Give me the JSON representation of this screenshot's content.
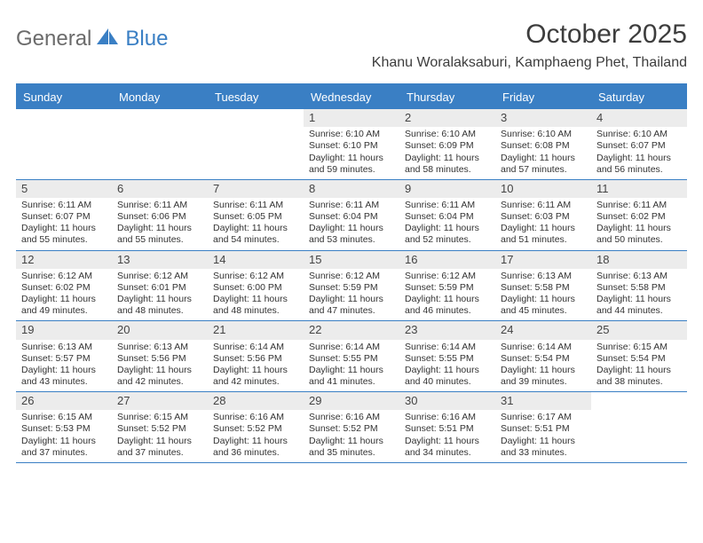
{
  "brand": {
    "part1": "General",
    "part2": "Blue"
  },
  "title": "October 2025",
  "location": "Khanu Woralaksaburi, Kamphaeng Phet, Thailand",
  "colors": {
    "accent": "#3a7fc4",
    "header_text": "#ffffff",
    "cell_bg": "#ececec",
    "text": "#333333",
    "page_bg": "#ffffff"
  },
  "day_names": [
    "Sunday",
    "Monday",
    "Tuesday",
    "Wednesday",
    "Thursday",
    "Friday",
    "Saturday"
  ],
  "weeks": [
    [
      {
        "n": "",
        "empty": true
      },
      {
        "n": "",
        "empty": true
      },
      {
        "n": "",
        "empty": true
      },
      {
        "n": "1",
        "sr": "Sunrise: 6:10 AM",
        "ss": "Sunset: 6:10 PM",
        "dl": "Daylight: 11 hours and 59 minutes."
      },
      {
        "n": "2",
        "sr": "Sunrise: 6:10 AM",
        "ss": "Sunset: 6:09 PM",
        "dl": "Daylight: 11 hours and 58 minutes."
      },
      {
        "n": "3",
        "sr": "Sunrise: 6:10 AM",
        "ss": "Sunset: 6:08 PM",
        "dl": "Daylight: 11 hours and 57 minutes."
      },
      {
        "n": "4",
        "sr": "Sunrise: 6:10 AM",
        "ss": "Sunset: 6:07 PM",
        "dl": "Daylight: 11 hours and 56 minutes."
      }
    ],
    [
      {
        "n": "5",
        "sr": "Sunrise: 6:11 AM",
        "ss": "Sunset: 6:07 PM",
        "dl": "Daylight: 11 hours and 55 minutes."
      },
      {
        "n": "6",
        "sr": "Sunrise: 6:11 AM",
        "ss": "Sunset: 6:06 PM",
        "dl": "Daylight: 11 hours and 55 minutes."
      },
      {
        "n": "7",
        "sr": "Sunrise: 6:11 AM",
        "ss": "Sunset: 6:05 PM",
        "dl": "Daylight: 11 hours and 54 minutes."
      },
      {
        "n": "8",
        "sr": "Sunrise: 6:11 AM",
        "ss": "Sunset: 6:04 PM",
        "dl": "Daylight: 11 hours and 53 minutes."
      },
      {
        "n": "9",
        "sr": "Sunrise: 6:11 AM",
        "ss": "Sunset: 6:04 PM",
        "dl": "Daylight: 11 hours and 52 minutes."
      },
      {
        "n": "10",
        "sr": "Sunrise: 6:11 AM",
        "ss": "Sunset: 6:03 PM",
        "dl": "Daylight: 11 hours and 51 minutes."
      },
      {
        "n": "11",
        "sr": "Sunrise: 6:11 AM",
        "ss": "Sunset: 6:02 PM",
        "dl": "Daylight: 11 hours and 50 minutes."
      }
    ],
    [
      {
        "n": "12",
        "sr": "Sunrise: 6:12 AM",
        "ss": "Sunset: 6:02 PM",
        "dl": "Daylight: 11 hours and 49 minutes."
      },
      {
        "n": "13",
        "sr": "Sunrise: 6:12 AM",
        "ss": "Sunset: 6:01 PM",
        "dl": "Daylight: 11 hours and 48 minutes."
      },
      {
        "n": "14",
        "sr": "Sunrise: 6:12 AM",
        "ss": "Sunset: 6:00 PM",
        "dl": "Daylight: 11 hours and 48 minutes."
      },
      {
        "n": "15",
        "sr": "Sunrise: 6:12 AM",
        "ss": "Sunset: 5:59 PM",
        "dl": "Daylight: 11 hours and 47 minutes."
      },
      {
        "n": "16",
        "sr": "Sunrise: 6:12 AM",
        "ss": "Sunset: 5:59 PM",
        "dl": "Daylight: 11 hours and 46 minutes."
      },
      {
        "n": "17",
        "sr": "Sunrise: 6:13 AM",
        "ss": "Sunset: 5:58 PM",
        "dl": "Daylight: 11 hours and 45 minutes."
      },
      {
        "n": "18",
        "sr": "Sunrise: 6:13 AM",
        "ss": "Sunset: 5:58 PM",
        "dl": "Daylight: 11 hours and 44 minutes."
      }
    ],
    [
      {
        "n": "19",
        "sr": "Sunrise: 6:13 AM",
        "ss": "Sunset: 5:57 PM",
        "dl": "Daylight: 11 hours and 43 minutes."
      },
      {
        "n": "20",
        "sr": "Sunrise: 6:13 AM",
        "ss": "Sunset: 5:56 PM",
        "dl": "Daylight: 11 hours and 42 minutes."
      },
      {
        "n": "21",
        "sr": "Sunrise: 6:14 AM",
        "ss": "Sunset: 5:56 PM",
        "dl": "Daylight: 11 hours and 42 minutes."
      },
      {
        "n": "22",
        "sr": "Sunrise: 6:14 AM",
        "ss": "Sunset: 5:55 PM",
        "dl": "Daylight: 11 hours and 41 minutes."
      },
      {
        "n": "23",
        "sr": "Sunrise: 6:14 AM",
        "ss": "Sunset: 5:55 PM",
        "dl": "Daylight: 11 hours and 40 minutes."
      },
      {
        "n": "24",
        "sr": "Sunrise: 6:14 AM",
        "ss": "Sunset: 5:54 PM",
        "dl": "Daylight: 11 hours and 39 minutes."
      },
      {
        "n": "25",
        "sr": "Sunrise: 6:15 AM",
        "ss": "Sunset: 5:54 PM",
        "dl": "Daylight: 11 hours and 38 minutes."
      }
    ],
    [
      {
        "n": "26",
        "sr": "Sunrise: 6:15 AM",
        "ss": "Sunset: 5:53 PM",
        "dl": "Daylight: 11 hours and 37 minutes."
      },
      {
        "n": "27",
        "sr": "Sunrise: 6:15 AM",
        "ss": "Sunset: 5:52 PM",
        "dl": "Daylight: 11 hours and 37 minutes."
      },
      {
        "n": "28",
        "sr": "Sunrise: 6:16 AM",
        "ss": "Sunset: 5:52 PM",
        "dl": "Daylight: 11 hours and 36 minutes."
      },
      {
        "n": "29",
        "sr": "Sunrise: 6:16 AM",
        "ss": "Sunset: 5:52 PM",
        "dl": "Daylight: 11 hours and 35 minutes."
      },
      {
        "n": "30",
        "sr": "Sunrise: 6:16 AM",
        "ss": "Sunset: 5:51 PM",
        "dl": "Daylight: 11 hours and 34 minutes."
      },
      {
        "n": "31",
        "sr": "Sunrise: 6:17 AM",
        "ss": "Sunset: 5:51 PM",
        "dl": "Daylight: 11 hours and 33 minutes."
      },
      {
        "n": "",
        "empty": true
      }
    ]
  ]
}
